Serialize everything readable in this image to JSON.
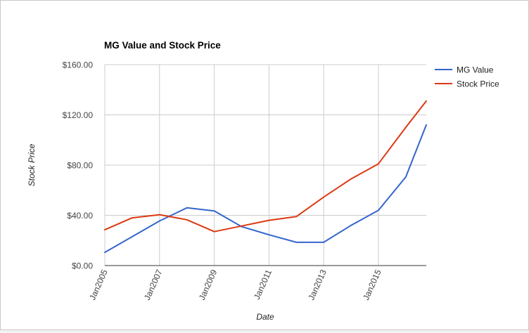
{
  "chart_data": {
    "type": "line",
    "title": "MG Value and Stock Price",
    "xlabel": "Date",
    "ylabel": "Stock Price",
    "x": [
      "2005-01",
      "2006-01",
      "2007-01",
      "2008-01",
      "2009-01",
      "2010-01",
      "2011-01",
      "2012-01",
      "2013-01",
      "2014-01",
      "2015-01",
      "2016-01",
      "2016-10"
    ],
    "x_ticks": [
      {
        "value": "2005-01",
        "label": "Jan2005"
      },
      {
        "value": "2007-01",
        "label": "Jan2007"
      },
      {
        "value": "2009-01",
        "label": "Jan2009"
      },
      {
        "value": "2011-01",
        "label": "Jan2011"
      },
      {
        "value": "2013-01",
        "label": "Jan2013"
      },
      {
        "value": "2015-01",
        "label": "Jan2015"
      }
    ],
    "y_ticks": [
      {
        "value": 0,
        "label": "$0.00"
      },
      {
        "value": 40,
        "label": "$40.00"
      },
      {
        "value": 80,
        "label": "$80.00"
      },
      {
        "value": 120,
        "label": "$120.00"
      },
      {
        "value": 160,
        "label": "$160.00"
      }
    ],
    "xlim": [
      "2005-01",
      "2016-10"
    ],
    "ylim": [
      0,
      160
    ],
    "grid": true,
    "legend": "right",
    "series": [
      {
        "name": "MG Value",
        "color": "#3366cc",
        "values": [
          10.5,
          23,
          35.5,
          46,
          43.5,
          31,
          24.5,
          18.5,
          18.5,
          32,
          44,
          70.5,
          112
        ]
      },
      {
        "name": "Stock Price",
        "color": "#dc3912",
        "values": [
          28.5,
          38,
          40.5,
          36.5,
          27,
          31.5,
          36,
          39,
          54.5,
          69,
          81,
          110,
          131
        ]
      }
    ]
  }
}
